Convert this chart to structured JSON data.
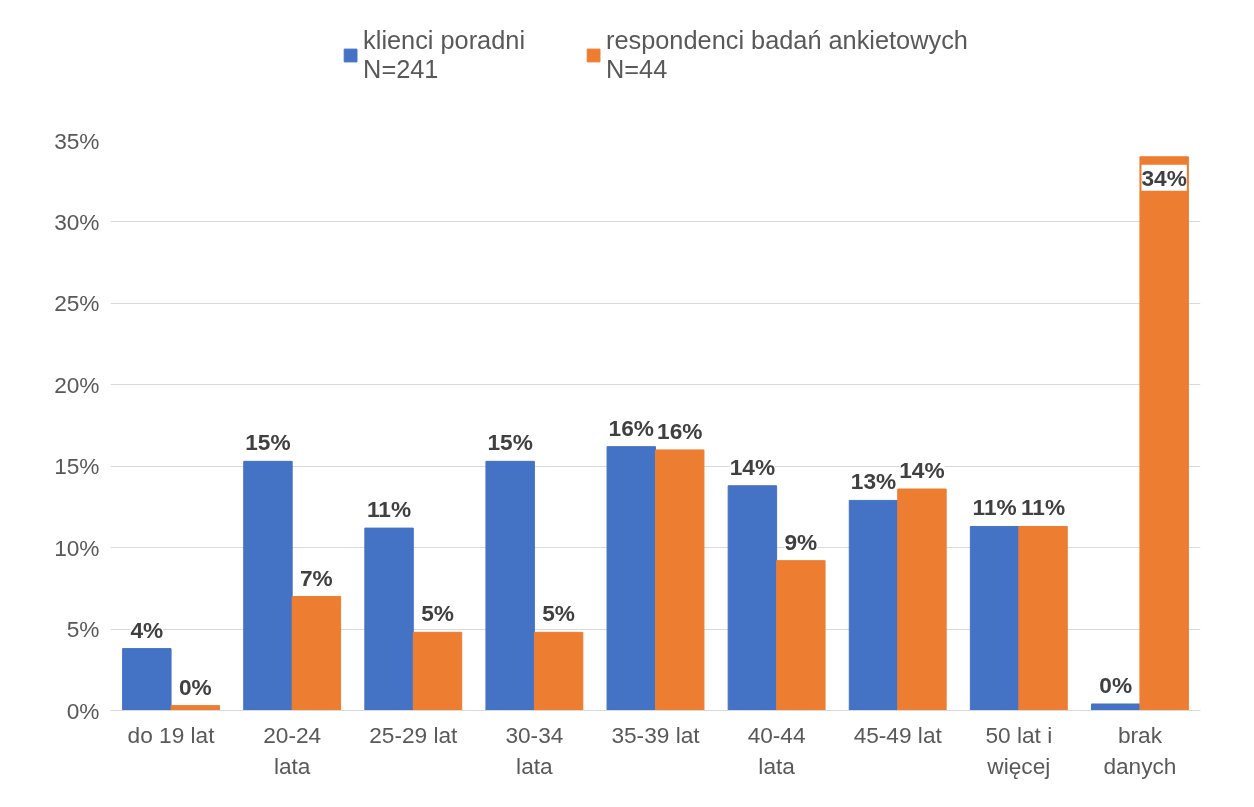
{
  "chart_data": {
    "type": "bar",
    "categories": [
      "do 19 lat",
      "20-24\nlata",
      "25-29 lat",
      "30-34\nlata",
      "35-39 lat",
      "40-44\nlata",
      "45-49 lat",
      "50 lat i\nwięcej",
      "brak\ndanych"
    ],
    "series": [
      {
        "name": "klienci poradni\nN=241",
        "color": "#4472c4",
        "values": [
          3.8,
          15.3,
          11.2,
          15.3,
          16.2,
          13.8,
          12.9,
          11.3,
          0.4
        ],
        "value_labels": [
          "4%",
          "15%",
          "11%",
          "15%",
          "16%",
          "14%",
          "13%",
          "11%",
          "0%"
        ]
      },
      {
        "name": "respondenci badań ankietowych\nN=44",
        "color": "#ed7d31",
        "values": [
          0.3,
          7.0,
          4.8,
          4.8,
          16.0,
          9.2,
          13.6,
          11.3,
          34.0
        ],
        "value_labels": [
          "0%",
          "7%",
          "5%",
          "5%",
          "16%",
          "9%",
          "14%",
          "11%",
          "34%"
        ]
      }
    ],
    "ylim": [
      0,
      35
    ],
    "yticks": [
      {
        "value": 0,
        "label": "0%"
      },
      {
        "value": 5,
        "label": "5%"
      },
      {
        "value": 10,
        "label": "10%"
      },
      {
        "value": 15,
        "label": "15%"
      },
      {
        "value": 20,
        "label": "20%"
      },
      {
        "value": 25,
        "label": "25%"
      },
      {
        "value": 30,
        "label": "30%"
      },
      {
        "value": 35,
        "label": "35%"
      }
    ],
    "grid": "y",
    "legend": "top"
  }
}
